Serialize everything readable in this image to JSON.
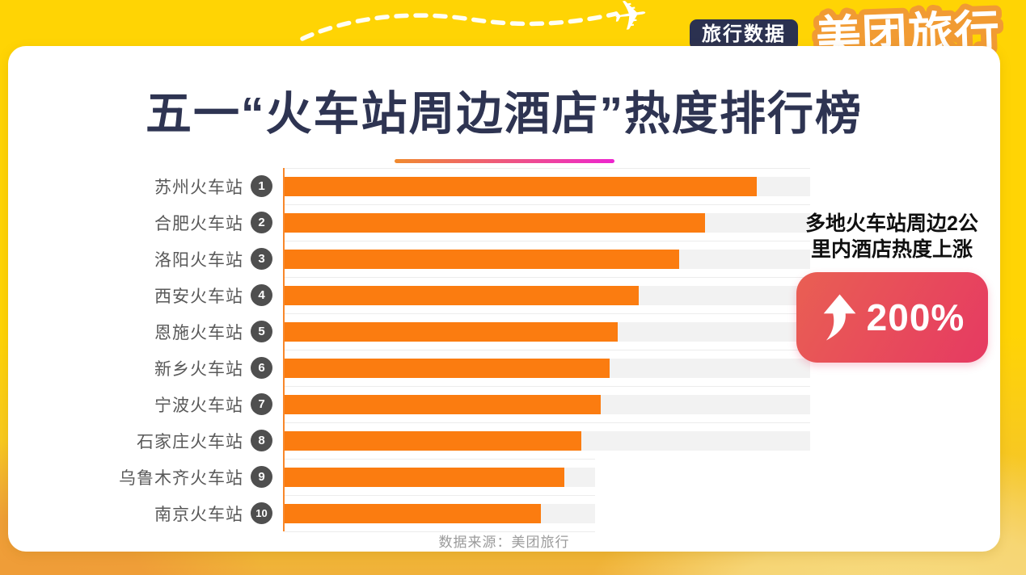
{
  "header": {
    "category_badge": "旅行数据",
    "brand": "美团旅行"
  },
  "title": "五一“火车站周边酒店”热度排行榜",
  "chart_data": {
    "type": "bar",
    "orientation": "horizontal",
    "title": "五一“火车站周边酒店”热度排行榜",
    "categories": [
      "苏州火车站",
      "合肥火车站",
      "洛阳火车站",
      "西安火车站",
      "恩施火车站",
      "新乡火车站",
      "宁波火车站",
      "石家庄火车站",
      "乌鲁木齐火车站",
      "南京火车站"
    ],
    "ranks": [
      1,
      2,
      3,
      4,
      5,
      6,
      7,
      8,
      9,
      10
    ],
    "values": [
      89.8,
      80.0,
      75.1,
      67.4,
      63.4,
      61.8,
      60.2,
      56.5,
      53.2,
      48.8
    ],
    "track_lengths": [
      100,
      100,
      100,
      100,
      100,
      100,
      100,
      100,
      59,
      59
    ],
    "xlim": [
      0,
      100
    ],
    "value_labels_shown": false,
    "grid": true,
    "legend": "none",
    "colors": {
      "bar": "#FB7C10",
      "track": "#F2F2F2",
      "axis": "#F8882B",
      "gridline": "#ECECEC",
      "label": "#595959",
      "rank_circle": "#4F4F4F"
    }
  },
  "annotation": {
    "line1": "多地火车站周边2公",
    "line2": "里内酒店热度上涨",
    "badge_value": "200%",
    "badge_gradient_start": "#E95F53",
    "badge_gradient_end": "#E63A62"
  },
  "footer": {
    "source": "数据来源：美团旅行"
  },
  "palette": {
    "background_yellow": "#FFD404",
    "background_orange": "#EF9C38",
    "title_navy": "#2E3452",
    "badge_navy": "#2B3150",
    "brand_orange": "#F19B33",
    "underline_gradient_start": "#F08A2E",
    "underline_gradient_end": "#ED25CF"
  }
}
